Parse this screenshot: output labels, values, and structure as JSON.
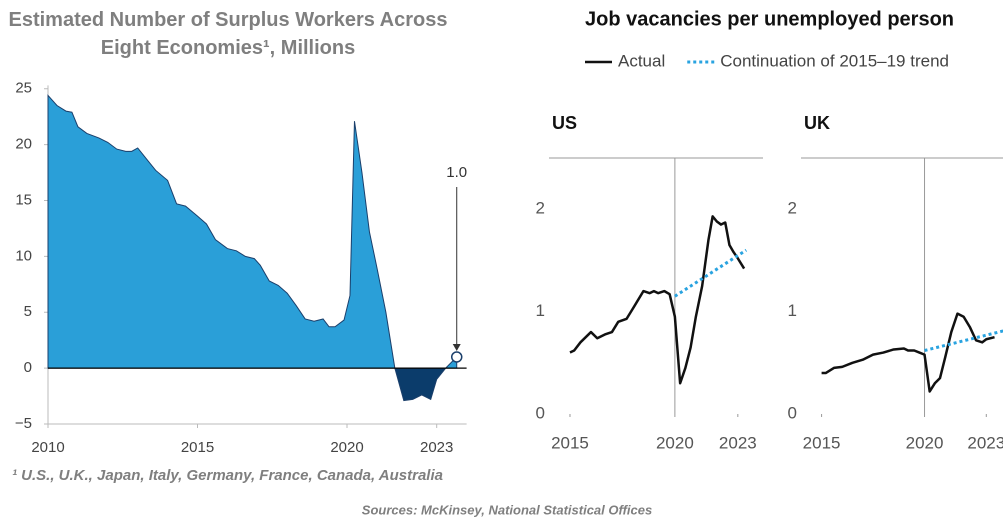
{
  "heading": "Job vacancies per unemployed person",
  "footnote": "¹ U.S., U.K., Japan, Italy, Germany, France, Canada, Australia",
  "sources": "Sources: McKinsey,  National Statistical  Offices",
  "chart_data": [
    {
      "type": "area",
      "title": "Estimated Number of Surplus Workers Across Eight Economies¹, Millions",
      "x": [
        2010,
        2010.3,
        2010.6,
        2010.8,
        2011.0,
        2011.3,
        2011.7,
        2012.0,
        2012.3,
        2012.6,
        2012.8,
        2013.0,
        2013.3,
        2013.6,
        2014.0,
        2014.3,
        2014.6,
        2015.0,
        2015.3,
        2015.6,
        2016.0,
        2016.3,
        2016.6,
        2016.9,
        2017.1,
        2017.4,
        2017.7,
        2018.0,
        2018.3,
        2018.6,
        2018.9,
        2019.2,
        2019.4,
        2019.6,
        2019.9,
        2020.1,
        2020.25,
        2020.5,
        2020.75,
        2021.0,
        2021.3,
        2021.6,
        2021.9,
        2022.2,
        2022.5,
        2022.8,
        2023.0,
        2023.3,
        2023.67
      ],
      "values": [
        24.4,
        23.5,
        23.0,
        22.9,
        21.6,
        21.0,
        20.6,
        20.2,
        19.6,
        19.4,
        19.4,
        19.7,
        18.7,
        17.7,
        16.8,
        14.7,
        14.5,
        13.6,
        12.9,
        11.5,
        10.7,
        10.5,
        10.0,
        9.8,
        9.2,
        7.8,
        7.4,
        6.7,
        5.6,
        4.4,
        4.2,
        4.4,
        3.7,
        3.7,
        4.3,
        6.5,
        22.1,
        17.5,
        12.2,
        9.0,
        5.0,
        0.0,
        -2.9,
        -2.8,
        -2.4,
        -2.8,
        -1.0,
        0.0,
        1.0
      ],
      "color": "#2a9fd8",
      "negative_color": "#0b3c6b",
      "annotation": "1.0",
      "xlim": [
        2010,
        2024
      ],
      "ylim": [
        -5,
        25.3
      ],
      "xticks": [
        2010,
        2015,
        2020,
        2023
      ],
      "yticks": [
        {
          "value": -5,
          "label": "−5"
        },
        0,
        5,
        10,
        15,
        20,
        25
      ]
    },
    {
      "type": "line",
      "title": "US",
      "vline": 2020,
      "xlim": [
        2014,
        2024.2
      ],
      "ylim": [
        0,
        2.5
      ],
      "xticks": [
        2015,
        2020,
        2023
      ],
      "yticks": [
        0,
        1,
        2
      ],
      "series": [
        {
          "name": "Actual",
          "color": "#111111",
          "style": "solid",
          "x": [
            2015.0,
            2015.2,
            2015.5,
            2016.0,
            2016.3,
            2016.7,
            2017.0,
            2017.3,
            2017.7,
            2018.0,
            2018.5,
            2018.8,
            2019.0,
            2019.2,
            2019.5,
            2019.75,
            2020.0,
            2020.25,
            2020.5,
            2020.75,
            2021.0,
            2021.3,
            2021.6,
            2021.8,
            2022.0,
            2022.2,
            2022.4,
            2022.6,
            2022.8,
            2023.0,
            2023.3
          ],
          "values": [
            0.6,
            0.62,
            0.7,
            0.8,
            0.74,
            0.78,
            0.8,
            0.9,
            0.93,
            1.03,
            1.2,
            1.18,
            1.2,
            1.18,
            1.2,
            1.17,
            0.95,
            0.3,
            0.45,
            0.65,
            0.95,
            1.25,
            1.7,
            1.93,
            1.88,
            1.85,
            1.87,
            1.65,
            1.58,
            1.52,
            1.42
          ]
        },
        {
          "name": "Continuation of 2015–19 trend",
          "color": "#29a3e0",
          "style": "dotted",
          "x": [
            2020.0,
            2023.4
          ],
          "values": [
            1.15,
            1.6
          ]
        }
      ]
    },
    {
      "type": "line",
      "title": "UK",
      "vline": 2020,
      "xlim": [
        2014,
        2024.2
      ],
      "ylim": [
        0,
        2.5
      ],
      "xticks": [
        2015,
        2020,
        2023
      ],
      "yticks": [
        0,
        1,
        2
      ],
      "series": [
        {
          "name": "Actual",
          "color": "#111111",
          "style": "solid",
          "x": [
            2015.0,
            2015.2,
            2015.6,
            2016.0,
            2016.5,
            2017.0,
            2017.5,
            2018.0,
            2018.5,
            2019.0,
            2019.2,
            2019.5,
            2019.75,
            2020.0,
            2020.25,
            2020.5,
            2020.75,
            2021.0,
            2021.3,
            2021.6,
            2021.9,
            2022.2,
            2022.5,
            2022.8,
            2023.0,
            2023.4
          ],
          "values": [
            0.4,
            0.4,
            0.45,
            0.46,
            0.5,
            0.53,
            0.58,
            0.6,
            0.63,
            0.64,
            0.62,
            0.62,
            0.6,
            0.58,
            0.22,
            0.3,
            0.35,
            0.55,
            0.8,
            0.98,
            0.95,
            0.85,
            0.72,
            0.7,
            0.73,
            0.75
          ]
        },
        {
          "name": "Continuation of 2015–19 trend",
          "color": "#29a3e0",
          "style": "dotted",
          "x": [
            2020.0,
            2024.0
          ],
          "values": [
            0.62,
            0.82
          ]
        }
      ]
    }
  ]
}
